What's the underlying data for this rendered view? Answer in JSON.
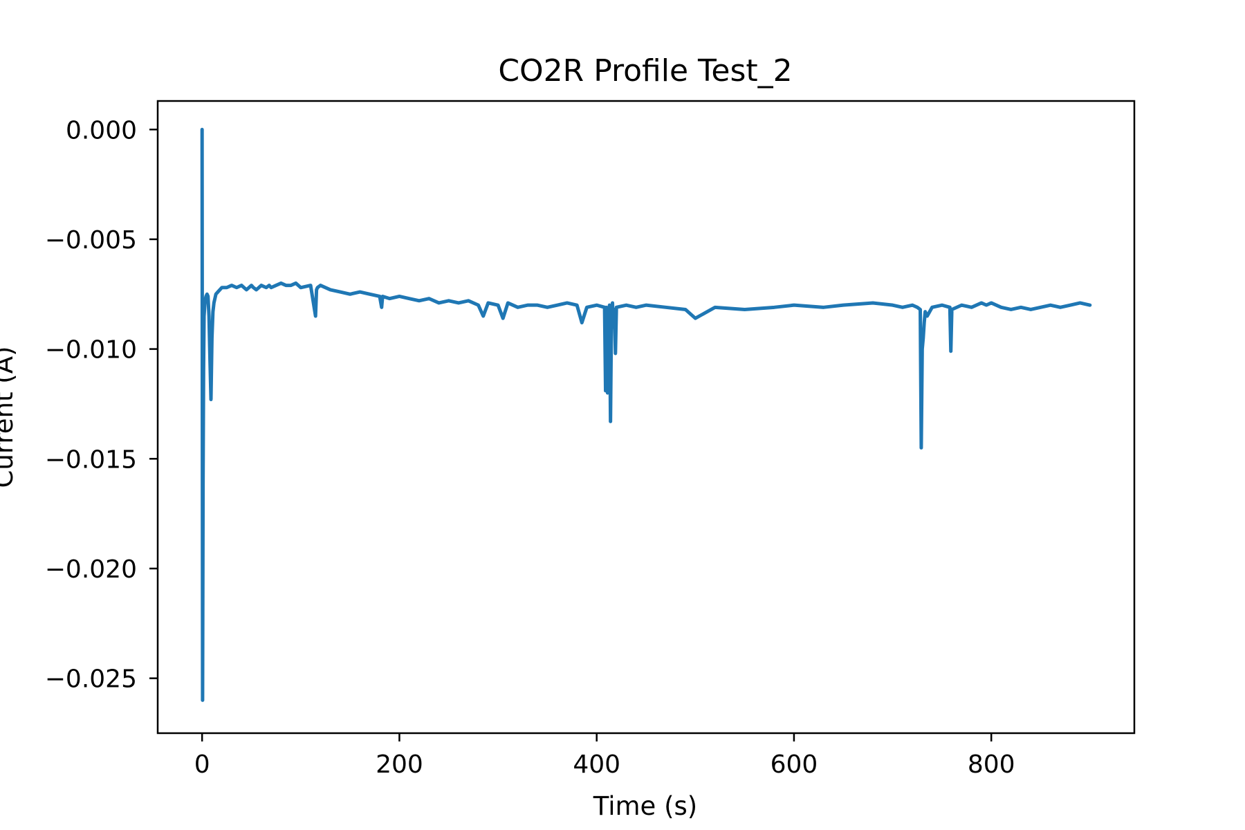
{
  "chart_data": {
    "type": "line",
    "title": "CO2R Profile Test_2",
    "xlabel": "Time (s)",
    "ylabel": "Current (A)",
    "xlim": [
      -45,
      945
    ],
    "ylim": [
      -0.0275,
      0.0013
    ],
    "x_ticks": [
      0,
      200,
      400,
      600,
      800
    ],
    "x_tick_labels": [
      "0",
      "200",
      "400",
      "600",
      "800"
    ],
    "y_ticks": [
      0.0,
      -0.005,
      -0.01,
      -0.015,
      -0.02,
      -0.025
    ],
    "y_tick_labels": [
      "0.000",
      "−0.005",
      "−0.010",
      "−0.015",
      "−0.020",
      "−0.025"
    ],
    "grid": false,
    "legend": "none",
    "line_color": "#1f77b4",
    "series": [
      {
        "x": [
          0,
          0.5,
          1,
          1.5,
          2,
          3,
          4,
          5,
          6,
          7,
          8,
          9,
          10,
          11,
          12,
          13,
          14,
          16,
          18,
          20,
          25,
          30,
          35,
          40,
          45,
          50,
          52,
          55,
          60,
          65,
          68,
          70,
          75,
          80,
          85,
          90,
          95,
          100,
          110,
          115,
          116,
          117,
          120,
          130,
          140,
          150,
          160,
          170,
          180,
          182,
          183,
          190,
          200,
          210,
          220,
          230,
          240,
          250,
          260,
          270,
          280,
          285,
          290,
          300,
          305,
          310,
          320,
          330,
          340,
          350,
          360,
          370,
          380,
          385,
          390,
          400,
          408,
          409,
          410,
          411,
          412,
          413,
          414,
          415,
          416,
          417,
          418,
          419,
          420,
          430,
          440,
          450,
          470,
          490,
          500,
          520,
          550,
          580,
          600,
          630,
          650,
          680,
          700,
          710,
          720,
          725,
          728,
          729,
          730,
          731,
          732,
          733,
          735,
          740,
          750,
          758,
          759,
          760,
          770,
          780,
          790,
          795,
          800,
          810,
          820,
          830,
          840,
          850,
          860,
          870,
          880,
          890,
          900
        ],
        "y": [
          0.0,
          -0.026,
          -0.016,
          -0.011,
          -0.0085,
          -0.0078,
          -0.0076,
          -0.0075,
          -0.0076,
          -0.0085,
          -0.0105,
          -0.0123,
          -0.0095,
          -0.0083,
          -0.0079,
          -0.0077,
          -0.0075,
          -0.0074,
          -0.0073,
          -0.0072,
          -0.0072,
          -0.0071,
          -0.0072,
          -0.0071,
          -0.0073,
          -0.0071,
          -0.0072,
          -0.0073,
          -0.0071,
          -0.0072,
          -0.0071,
          -0.0072,
          -0.0071,
          -0.007,
          -0.0071,
          -0.0071,
          -0.007,
          -0.0072,
          -0.0071,
          -0.0085,
          -0.0073,
          -0.0072,
          -0.0071,
          -0.0073,
          -0.0074,
          -0.0075,
          -0.0074,
          -0.0075,
          -0.0076,
          -0.0081,
          -0.0076,
          -0.0077,
          -0.0076,
          -0.0077,
          -0.0078,
          -0.0077,
          -0.0079,
          -0.0078,
          -0.0079,
          -0.0078,
          -0.008,
          -0.0085,
          -0.0079,
          -0.008,
          -0.0086,
          -0.0079,
          -0.0081,
          -0.008,
          -0.008,
          -0.0081,
          -0.008,
          -0.0079,
          -0.008,
          -0.0088,
          -0.0081,
          -0.008,
          -0.0081,
          -0.0119,
          -0.0081,
          -0.012,
          -0.0095,
          -0.008,
          -0.0133,
          -0.0085,
          -0.0079,
          -0.009,
          -0.0082,
          -0.0102,
          -0.0081,
          -0.008,
          -0.0081,
          -0.008,
          -0.0081,
          -0.0082,
          -0.0086,
          -0.0081,
          -0.0082,
          -0.0081,
          -0.008,
          -0.0081,
          -0.008,
          -0.0079,
          -0.008,
          -0.0081,
          -0.008,
          -0.0081,
          -0.0082,
          -0.0145,
          -0.01,
          -0.0095,
          -0.0088,
          -0.0083,
          -0.0085,
          -0.0081,
          -0.008,
          -0.0081,
          -0.0101,
          -0.0082,
          -0.008,
          -0.0081,
          -0.0079,
          -0.008,
          -0.0079,
          -0.0081,
          -0.0082,
          -0.0081,
          -0.0082,
          -0.0081,
          -0.008,
          -0.0081,
          -0.008,
          -0.0079,
          -0.008
        ]
      }
    ]
  }
}
